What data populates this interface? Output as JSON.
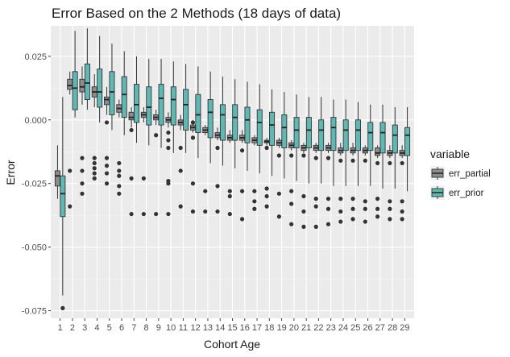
{
  "chart_data": {
    "type": "boxplot",
    "title": "Error Based on the 2 Methods (18 days of data)",
    "xlabel": "Cohort Age",
    "ylabel": "Error",
    "ylim": [
      -0.078,
      0.037
    ],
    "yticks": [
      -0.075,
      -0.05,
      -0.025,
      0.0,
      0.025
    ],
    "ytick_labels": [
      "-0.075",
      "-0.050",
      "-0.025",
      "0.000",
      "0.025"
    ],
    "categories": [
      "1",
      "2",
      "3",
      "4",
      "5",
      "6",
      "7",
      "8",
      "9",
      "10",
      "11",
      "12",
      "13",
      "14",
      "15",
      "16",
      "17",
      "18",
      "19",
      "20",
      "21",
      "22",
      "23",
      "24",
      "25",
      "26",
      "27",
      "28",
      "29"
    ],
    "grid": true,
    "legend": {
      "title": "variable",
      "position": "right"
    },
    "series": [
      {
        "name": "err_partial",
        "color": "#8c8c8c",
        "boxes": [
          {
            "lw": -0.031,
            "q1": -0.026,
            "med": -0.022,
            "q3": -0.02,
            "uw": -0.01,
            "out": []
          },
          {
            "lw": 0.01,
            "q1": 0.012,
            "med": 0.0135,
            "q3": 0.016,
            "uw": 0.019,
            "out": [
              -0.02,
              -0.034
            ]
          },
          {
            "lw": 0.006,
            "q1": 0.011,
            "med": 0.013,
            "q3": 0.016,
            "uw": 0.021,
            "out": [
              -0.015,
              -0.02,
              -0.025,
              -0.029
            ]
          },
          {
            "lw": 0.005,
            "q1": 0.009,
            "med": 0.011,
            "q3": 0.013,
            "uw": 0.018,
            "out": [
              -0.015,
              -0.017,
              -0.019,
              -0.021,
              -0.023
            ]
          },
          {
            "lw": 0.002,
            "q1": 0.006,
            "med": 0.008,
            "q3": 0.009,
            "uw": 0.013,
            "out": [
              -0.001,
              -0.015,
              -0.018,
              -0.021,
              -0.025
            ]
          },
          {
            "lw": 0.001,
            "q1": 0.003,
            "med": 0.0045,
            "q3": 0.006,
            "uw": 0.008,
            "out": [
              -0.017,
              -0.02,
              -0.022,
              -0.026,
              -0.029
            ]
          },
          {
            "lw": -0.003,
            "q1": 0.0,
            "med": 0.001,
            "q3": 0.003,
            "uw": 0.005,
            "out": [
              -0.004,
              -0.023,
              -0.037
            ]
          },
          {
            "lw": -0.001,
            "q1": 0.001,
            "med": 0.002,
            "q3": 0.003,
            "uw": 0.005,
            "out": [
              -0.023,
              -0.037
            ]
          },
          {
            "lw": -0.002,
            "q1": 0.0,
            "med": 0.001,
            "q3": 0.002,
            "uw": 0.004,
            "out": [
              -0.006,
              -0.037
            ]
          },
          {
            "lw": -0.003,
            "q1": -0.001,
            "med": 0.0,
            "q3": 0.001,
            "uw": 0.003,
            "out": [
              -0.005,
              -0.008,
              -0.011,
              -0.024,
              -0.025,
              -0.037
            ]
          },
          {
            "lw": -0.004,
            "q1": -0.002,
            "med": -0.001,
            "q3": 0.0,
            "uw": 0.002,
            "out": [
              -0.011,
              -0.02,
              -0.034
            ]
          },
          {
            "lw": -0.005,
            "q1": -0.004,
            "med": -0.003,
            "q3": -0.002,
            "uw": 0.0,
            "out": [
              -0.001,
              -0.007,
              -0.025,
              -0.036
            ]
          },
          {
            "lw": -0.006,
            "q1": -0.005,
            "med": -0.004,
            "q3": -0.003,
            "uw": -0.002,
            "out": [
              -0.028,
              -0.036
            ]
          },
          {
            "lw": -0.008,
            "q1": -0.007,
            "med": -0.006,
            "q3": -0.005,
            "uw": -0.003,
            "out": [
              -0.011,
              -0.026,
              -0.036
            ]
          },
          {
            "lw": -0.009,
            "q1": -0.008,
            "med": -0.007,
            "q3": -0.006,
            "uw": -0.004,
            "out": [
              -0.028,
              -0.03,
              -0.037
            ]
          },
          {
            "lw": -0.009,
            "q1": -0.008,
            "med": -0.007,
            "q3": -0.006,
            "uw": -0.004,
            "out": [
              -0.012,
              -0.028,
              -0.039
            ]
          },
          {
            "lw": -0.01,
            "q1": -0.009,
            "med": -0.008,
            "q3": -0.007,
            "uw": -0.006,
            "out": [
              -0.028,
              -0.032,
              -0.035
            ]
          },
          {
            "lw": -0.01,
            "q1": -0.009,
            "med": -0.0085,
            "q3": -0.008,
            "uw": -0.007,
            "out": [
              -0.011,
              -0.027,
              -0.03,
              -0.034
            ]
          },
          {
            "lw": -0.011,
            "q1": -0.01,
            "med": -0.009,
            "q3": -0.008,
            "uw": -0.007,
            "out": [
              -0.014,
              -0.029,
              -0.038
            ]
          },
          {
            "lw": -0.012,
            "q1": -0.011,
            "med": -0.01,
            "q3": -0.009,
            "uw": -0.008,
            "out": [
              -0.014,
              -0.028,
              -0.033,
              -0.041
            ]
          },
          {
            "lw": -0.013,
            "q1": -0.012,
            "med": -0.011,
            "q3": -0.01,
            "uw": -0.009,
            "out": [
              -0.014,
              -0.03,
              -0.036,
              -0.042
            ]
          },
          {
            "lw": -0.013,
            "q1": -0.012,
            "med": -0.011,
            "q3": -0.01,
            "uw": -0.009,
            "out": [
              -0.015,
              -0.031,
              -0.034,
              -0.042
            ]
          },
          {
            "lw": -0.013,
            "q1": -0.012,
            "med": -0.011,
            "q3": -0.01,
            "uw": -0.009,
            "out": [
              -0.015,
              -0.031,
              -0.035,
              -0.041
            ]
          },
          {
            "lw": -0.014,
            "q1": -0.013,
            "med": -0.012,
            "q3": -0.011,
            "uw": -0.009,
            "out": [
              -0.016,
              -0.031,
              -0.036,
              -0.04
            ]
          },
          {
            "lw": -0.014,
            "q1": -0.013,
            "med": -0.012,
            "q3": -0.011,
            "uw": -0.009,
            "out": [
              -0.016,
              -0.031,
              -0.035,
              -0.039
            ]
          },
          {
            "lw": -0.014,
            "q1": -0.013,
            "med": -0.012,
            "q3": -0.011,
            "uw": -0.01,
            "out": [
              -0.016,
              -0.032,
              -0.035,
              -0.04
            ]
          },
          {
            "lw": -0.015,
            "q1": -0.014,
            "med": -0.013,
            "q3": -0.011,
            "uw": -0.01,
            "out": [
              -0.017,
              -0.031,
              -0.035,
              -0.038
            ]
          },
          {
            "lw": -0.015,
            "q1": -0.014,
            "med": -0.013,
            "q3": -0.012,
            "uw": -0.01,
            "out": [
              -0.017,
              -0.032,
              -0.035,
              -0.039
            ]
          },
          {
            "lw": -0.015,
            "q1": -0.014,
            "med": -0.013,
            "q3": -0.012,
            "uw": -0.01,
            "out": [
              -0.017,
              -0.032,
              -0.036,
              -0.039
            ]
          }
        ]
      },
      {
        "name": "err_prior",
        "color": "#5fb8b3",
        "boxes": [
          {
            "lw": -0.069,
            "q1": -0.038,
            "med": -0.029,
            "q3": -0.022,
            "uw": 0.009,
            "out": [
              -0.074
            ]
          },
          {
            "lw": 0.001,
            "q1": 0.004,
            "med": 0.0125,
            "q3": 0.019,
            "uw": 0.035,
            "out": []
          },
          {
            "lw": 0.004,
            "q1": 0.008,
            "med": 0.0145,
            "q3": 0.022,
            "uw": 0.036,
            "out": []
          },
          {
            "lw": -0.001,
            "q1": 0.005,
            "med": 0.011,
            "q3": 0.02,
            "uw": 0.033,
            "out": []
          },
          {
            "lw": -0.004,
            "q1": 0.002,
            "med": 0.011,
            "q3": 0.019,
            "uw": 0.03,
            "out": []
          },
          {
            "lw": -0.006,
            "q1": 0.001,
            "med": 0.01,
            "q3": 0.017,
            "uw": 0.027,
            "out": []
          },
          {
            "lw": -0.009,
            "q1": -0.001,
            "med": 0.006,
            "q3": 0.014,
            "uw": 0.025,
            "out": []
          },
          {
            "lw": -0.01,
            "q1": -0.002,
            "med": 0.005,
            "q3": 0.013,
            "uw": 0.024,
            "out": []
          },
          {
            "lw": -0.011,
            "q1": -0.002,
            "med": 0.0085,
            "q3": 0.014,
            "uw": 0.024,
            "out": []
          },
          {
            "lw": -0.013,
            "q1": -0.002,
            "med": 0.008,
            "q3": 0.013,
            "uw": 0.023,
            "out": []
          },
          {
            "lw": -0.013,
            "q1": -0.004,
            "med": 0.006,
            "q3": 0.012,
            "uw": 0.022,
            "out": []
          },
          {
            "lw": -0.015,
            "q1": -0.005,
            "med": 0.002,
            "q3": 0.01,
            "uw": 0.021,
            "out": []
          },
          {
            "lw": -0.017,
            "q1": -0.007,
            "med": 0.003,
            "q3": 0.008,
            "uw": 0.019,
            "out": []
          },
          {
            "lw": -0.018,
            "q1": -0.008,
            "med": 0.002,
            "q3": 0.006,
            "uw": 0.017,
            "out": []
          },
          {
            "lw": -0.019,
            "q1": -0.008,
            "med": 0.001,
            "q3": 0.006,
            "uw": 0.016,
            "out": []
          },
          {
            "lw": -0.02,
            "q1": -0.009,
            "med": 0.0,
            "q3": 0.005,
            "uw": 0.015,
            "out": []
          },
          {
            "lw": -0.021,
            "q1": -0.01,
            "med": -0.001,
            "q3": 0.004,
            "uw": 0.014,
            "out": []
          },
          {
            "lw": -0.022,
            "q1": -0.01,
            "med": -0.002,
            "q3": 0.003,
            "uw": 0.012,
            "out": []
          },
          {
            "lw": -0.023,
            "q1": -0.011,
            "med": -0.003,
            "q3": 0.002,
            "uw": 0.011,
            "out": []
          },
          {
            "lw": -0.024,
            "q1": -0.011,
            "med": -0.004,
            "q3": 0.001,
            "uw": 0.01,
            "out": []
          },
          {
            "lw": -0.025,
            "q1": -0.011,
            "med": -0.004,
            "q3": 0.001,
            "uw": 0.009,
            "out": []
          },
          {
            "lw": -0.025,
            "q1": -0.012,
            "med": -0.004,
            "q3": 0.0,
            "uw": 0.009,
            "out": []
          },
          {
            "lw": -0.026,
            "q1": -0.012,
            "med": -0.003,
            "q3": 0.001,
            "uw": 0.008,
            "out": []
          },
          {
            "lw": -0.026,
            "q1": -0.012,
            "med": -0.004,
            "q3": 0.0,
            "uw": 0.008,
            "out": []
          },
          {
            "lw": -0.026,
            "q1": -0.012,
            "med": -0.004,
            "q3": 0.0,
            "uw": 0.007,
            "out": []
          },
          {
            "lw": -0.026,
            "q1": -0.012,
            "med": -0.005,
            "q3": -0.001,
            "uw": 0.006,
            "out": []
          },
          {
            "lw": -0.027,
            "q1": -0.013,
            "med": -0.005,
            "q3": -0.001,
            "uw": 0.006,
            "out": []
          },
          {
            "lw": -0.027,
            "q1": -0.013,
            "med": -0.006,
            "q3": -0.002,
            "uw": 0.005,
            "out": []
          },
          {
            "lw": -0.028,
            "q1": -0.014,
            "med": -0.006,
            "q3": -0.003,
            "uw": 0.005,
            "out": []
          }
        ]
      }
    ]
  }
}
